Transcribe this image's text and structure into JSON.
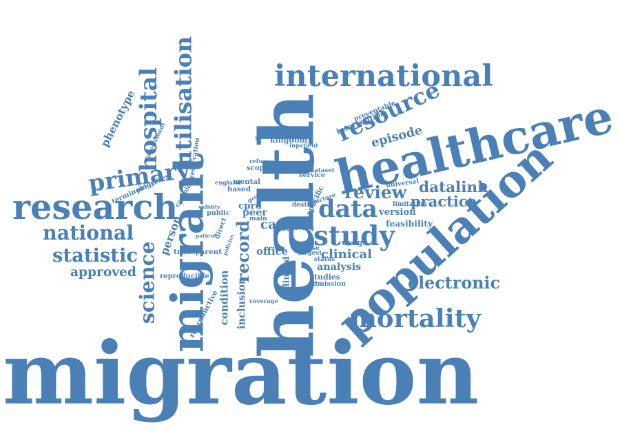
{
  "color": "#4a80b5",
  "words": [
    "migration",
    "health",
    "population",
    "migrant",
    "healthcare",
    "international",
    "research",
    "utilisation",
    "study",
    "hospital",
    "primary",
    "science",
    "statistic",
    "mortality",
    "national",
    "resource",
    "data",
    "electronic",
    "review",
    "clinical",
    "datalink",
    "phenotype",
    "practice",
    "approved",
    "record",
    "inclusion",
    "condition",
    "episode",
    "analysis",
    "version",
    "feasibility",
    "care",
    "office",
    "kingdom",
    "cohort",
    "person",
    "linked",
    "peer",
    "cprd",
    "based",
    "scoping",
    "usage",
    "studies",
    "reproducible",
    "transparent",
    "refugee",
    "reservation",
    "intervention",
    "preventable",
    "awaiting",
    "involvement",
    "terminology",
    "priorities",
    "mental",
    "public",
    "specific",
    "evidence",
    "inpatient",
    "service",
    "admission",
    "coverage",
    "reproductive",
    "death",
    "main",
    "limitation",
    "complete",
    "validity",
    "direct",
    "patient",
    "universal",
    "england",
    "group",
    "living",
    "status",
    "disease",
    "largest",
    "dataset",
    "picture",
    "access",
    "policies"
  ]
}
